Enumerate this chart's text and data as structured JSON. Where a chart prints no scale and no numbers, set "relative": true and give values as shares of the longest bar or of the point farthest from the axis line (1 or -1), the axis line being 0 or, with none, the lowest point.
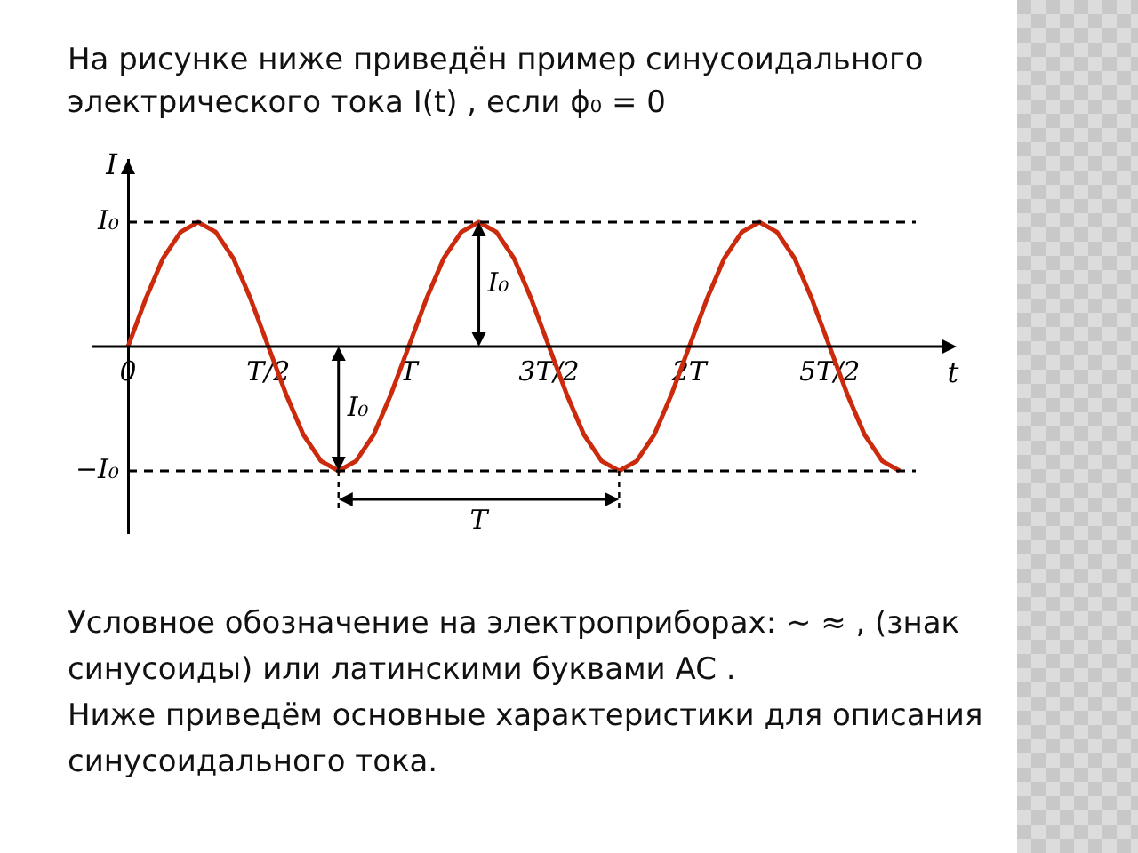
{
  "chart_data": {
    "type": "line",
    "title": "На рисунке ниже приведён пример синусоидального электрического тока I(t) , если ϕ₀ = 0",
    "xlabel": "t",
    "ylabel": "I",
    "relative": true,
    "categories": [
      "0",
      null,
      null,
      null,
      null,
      null,
      null,
      null,
      "T/2",
      null,
      null,
      null,
      null,
      null,
      null,
      null,
      "T",
      null,
      null,
      null,
      null,
      null,
      null,
      null,
      "3T/2",
      null,
      null,
      null,
      null,
      null,
      null,
      null,
      "2T",
      null,
      null,
      null,
      null,
      null,
      null,
      null,
      "5T/2",
      null,
      null,
      null,
      null
    ],
    "series": [
      {
        "color": "#cc2a0c",
        "values": [
          0,
          0.38,
          0.71,
          0.92,
          1,
          0.92,
          0.71,
          0.38,
          0,
          -0.38,
          -0.71,
          -0.92,
          -1,
          -0.92,
          -0.71,
          -0.38,
          0,
          0.38,
          0.71,
          0.92,
          1,
          0.92,
          0.71,
          0.38,
          0,
          -0.38,
          -0.71,
          -0.92,
          -1,
          -0.92,
          -0.71,
          -0.38,
          0,
          0.38,
          0.71,
          0.92,
          1,
          0.92,
          0.71,
          0.38,
          0,
          -0.38,
          -0.71,
          -0.92,
          -1
        ]
      }
    ],
    "ref_lines": [
      {
        "axis": "y",
        "value": 1,
        "label": "I₀",
        "line_style": "dashed",
        "color": "#000000"
      },
      {
        "axis": "y",
        "value": -1,
        "label": "−I₀",
        "line_style": "dashed",
        "color": "#000000"
      }
    ],
    "annotations": [
      "I₀",
      "I₀",
      "T",
      "Условное обозначение на электроприборах: ∼ ≈ , (знак синусоиды) или латинскими буквами AC .",
      "Ниже приведём основные характеристики для описания синусоидального тока."
    ],
    "grid": false,
    "legend": false,
    "marker": "none"
  }
}
